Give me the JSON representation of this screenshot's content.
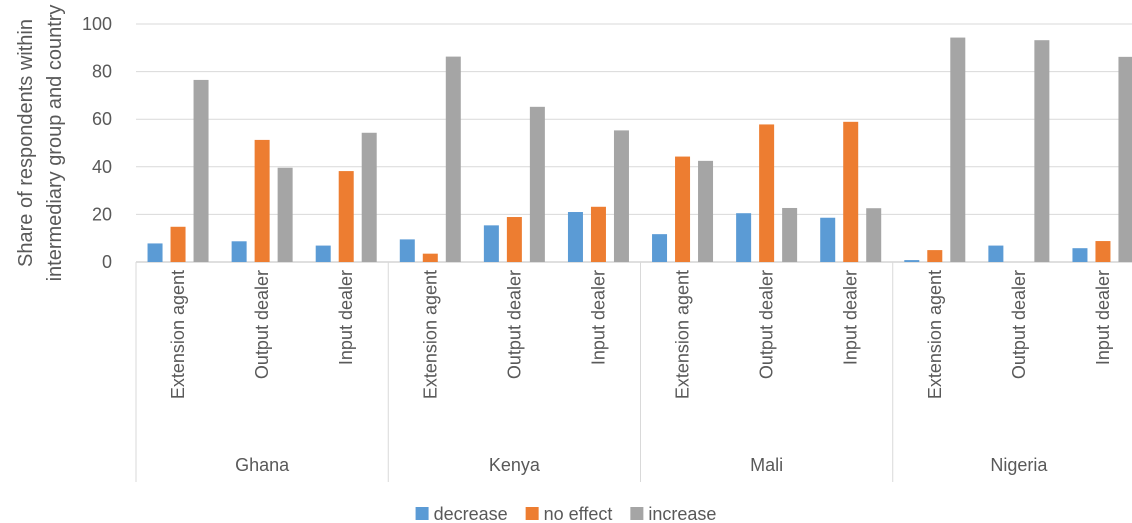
{
  "chart_data": {
    "type": "bar",
    "ylabel": [
      "Share of respondents within",
      "intermediary group and country"
    ],
    "xlabel": "",
    "ylim": [
      0,
      100
    ],
    "yticks": [
      0,
      20,
      40,
      60,
      80,
      100
    ],
    "grid": true,
    "legend_position": "bottom",
    "groups": [
      "Ghana",
      "Kenya",
      "Mali",
      "Nigeria"
    ],
    "subcategories": [
      "Extension agent",
      "Output dealer",
      "Input dealer"
    ],
    "series": [
      {
        "name": "decrease",
        "color": "#5b9bd5",
        "values": [
          7.8,
          8.7,
          6.9,
          9.5,
          15.4,
          21.0,
          11.7,
          20.5,
          18.6,
          0.8,
          6.9,
          5.8
        ]
      },
      {
        "name": "no effect",
        "color": "#ed7d31",
        "values": [
          14.8,
          51.3,
          38.2,
          3.5,
          18.9,
          23.2,
          44.3,
          57.8,
          58.9,
          5.0,
          0,
          8.8
        ]
      },
      {
        "name": "increase",
        "color": "#a5a5a5",
        "values": [
          76.5,
          39.6,
          54.3,
          86.3,
          65.2,
          55.3,
          42.5,
          22.7,
          22.6,
          94.3,
          93.2,
          86.2
        ]
      }
    ]
  }
}
